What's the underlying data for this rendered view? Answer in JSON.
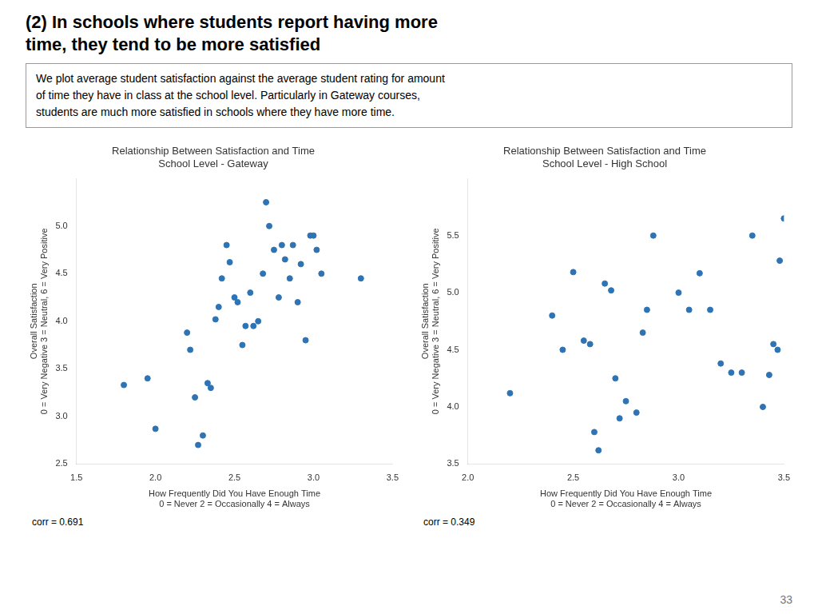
{
  "title": "(2) In schools where students report having more\ntime, they tend to be more satisfied",
  "subtitle": "We plot average student satisfaction against the average student rating for amount\nof time they have in class at the school level. Particularly in Gateway courses,\nstudents are much more satisfied in schools where they have more time.",
  "annotations": [
    "33"
  ],
  "chart_data": [
    {
      "type": "scatter",
      "title": "Relationship Between Satisfaction and Time\nSchool Level - Gateway",
      "xlabel": "How Frequently Did You Have Enough Time\n0 = Never 2 = Occasionally 4 = Always",
      "ylabel": "Overall Satisfaction\n0 = Very Negative 3 = Neutral, 6 = Very Positive",
      "annotations": [
        "corr = 0.691"
      ],
      "color": "#2E74B5",
      "grid": false,
      "xlim": [
        1.5,
        3.5
      ],
      "ylim": [
        2.5,
        5.5
      ],
      "xticks": [
        1.5,
        {
          "value": 2,
          "label": "2.0"
        },
        2.5,
        {
          "value": 3,
          "label": "3.0"
        },
        3.5
      ],
      "yticks": [
        2.5,
        {
          "value": 3,
          "label": "3.0"
        },
        3.5,
        {
          "value": 4,
          "label": "4.0"
        },
        4.5,
        {
          "value": 5,
          "label": "5.0"
        }
      ],
      "x": [
        1.8,
        1.95,
        2.0,
        2.2,
        2.22,
        2.25,
        2.27,
        2.3,
        2.33,
        2.35,
        2.38,
        2.4,
        2.42,
        2.45,
        2.47,
        2.5,
        2.52,
        2.55,
        2.57,
        2.6,
        2.62,
        2.65,
        2.68,
        2.7,
        2.72,
        2.75,
        2.78,
        2.8,
        2.82,
        2.85,
        2.87,
        2.9,
        2.92,
        2.95,
        2.98,
        3.0,
        3.02,
        3.05,
        3.3
      ],
      "values": [
        3.33,
        3.4,
        2.87,
        3.88,
        3.7,
        3.2,
        2.7,
        2.8,
        3.35,
        3.3,
        4.02,
        4.15,
        4.45,
        4.8,
        4.62,
        4.25,
        4.2,
        3.75,
        3.95,
        4.3,
        3.95,
        4.0,
        4.5,
        5.25,
        5.0,
        4.75,
        4.25,
        4.8,
        4.65,
        4.45,
        4.8,
        4.2,
        4.6,
        3.8,
        4.9,
        4.9,
        4.75,
        4.5,
        4.45
      ]
    },
    {
      "type": "scatter",
      "title": "Relationship Between Satisfaction and Time\nSchool Level - High School",
      "xlabel": "How Frequently Did You Have Enough Time\n0 = Never 2 = Occasionally 4 = Always",
      "ylabel": "Overall Satisfaction\n0 = Very Negative 3 = Neutral, 6 = Very Positive",
      "annotations": [
        "corr = 0.349"
      ],
      "color": "#2E74B5",
      "grid": false,
      "xlim": [
        2.0,
        3.5
      ],
      "ylim": [
        3.5,
        6.0
      ],
      "xticks": [
        {
          "value": 2,
          "label": "2.0"
        },
        2.5,
        {
          "value": 3,
          "label": "3.0"
        },
        3.5
      ],
      "yticks": [
        3.5,
        {
          "value": 4,
          "label": "4.0"
        },
        4.5,
        {
          "value": 5,
          "label": "5.0"
        },
        5.5
      ],
      "x": [
        2.2,
        2.4,
        2.45,
        2.5,
        2.55,
        2.58,
        2.6,
        2.62,
        2.65,
        2.68,
        2.7,
        2.72,
        2.75,
        2.8,
        2.83,
        2.85,
        2.88,
        3.0,
        3.05,
        3.1,
        3.15,
        3.2,
        3.25,
        3.3,
        3.35,
        3.4,
        3.43,
        3.45,
        3.47,
        3.48,
        3.5
      ],
      "values": [
        4.12,
        4.8,
        4.5,
        5.18,
        4.58,
        4.55,
        3.78,
        3.62,
        5.08,
        5.02,
        4.25,
        3.9,
        4.05,
        3.95,
        4.65,
        4.85,
        5.5,
        5.0,
        4.85,
        5.17,
        4.85,
        4.38,
        4.3,
        4.3,
        5.5,
        4.0,
        4.28,
        4.55,
        4.5,
        5.28,
        5.65
      ]
    }
  ]
}
